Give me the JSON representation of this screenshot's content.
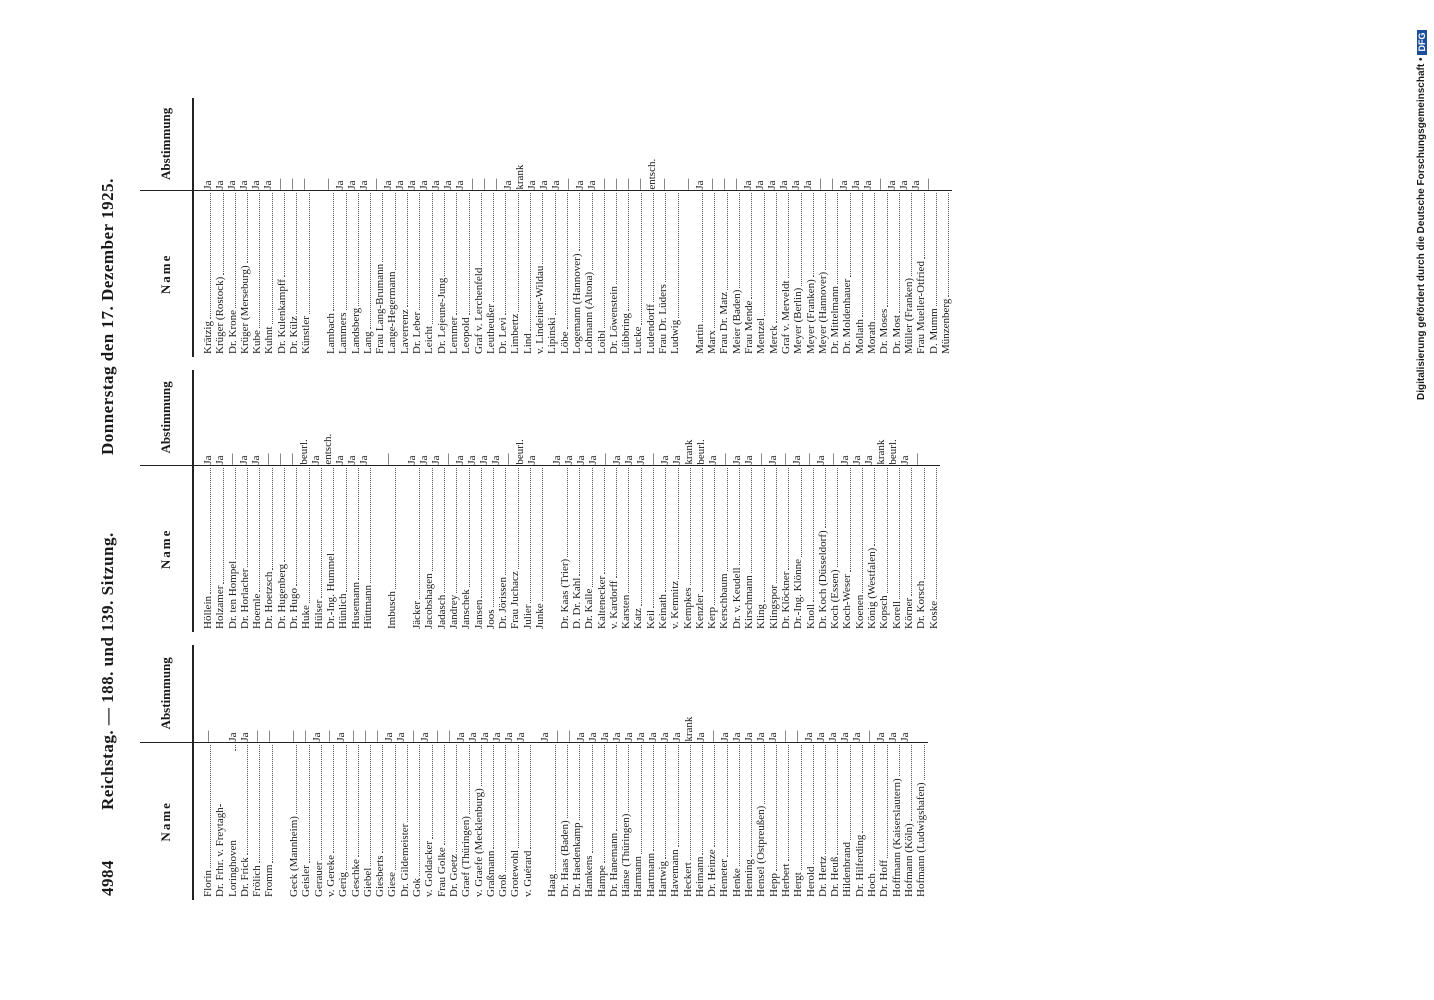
{
  "header": {
    "page_number": "4984",
    "title_left": "Reichstag. — 188. und 139. Sitzung.",
    "title_right": "Donnerstag den 17. Dezember 1925."
  },
  "table": {
    "column_headers": [
      "Name",
      "Abstimmung"
    ],
    "groups": [
      [
        [
          [
            "Florin",
            "—"
          ],
          [
            "Dr. Frhr. v. Freytagh-Loringhoven",
            "Ja"
          ],
          [
            "Dr. Frick",
            "Ja"
          ],
          [
            "Frölich",
            "—"
          ],
          [
            "Fromm",
            "—"
          ]
        ],
        [
          [
            "Geck (Mannheim)",
            "—"
          ],
          [
            "Geisler",
            "—"
          ],
          [
            "Gerauer",
            "Ja"
          ],
          [
            "v. Gereke",
            "—"
          ],
          [
            "Gerig",
            "Ja"
          ],
          [
            "Geschke",
            "—"
          ],
          [
            "Giebel",
            "—"
          ],
          [
            "Giesberts",
            "—"
          ],
          [
            "Giese",
            "Ja"
          ],
          [
            "Dr. Gildemeister",
            "Ja"
          ],
          [
            "Gok",
            "—"
          ],
          [
            "v. Goldacker",
            "Ja"
          ],
          [
            "Frau Golke",
            "—"
          ],
          [
            "Dr. Goetz",
            "—"
          ],
          [
            "Graef (Thüringen)",
            "Ja"
          ],
          [
            "v. Graefe (Mecklenburg)",
            "Ja"
          ],
          [
            "Graßmann",
            "Ja"
          ],
          [
            "Groß",
            "Ja"
          ],
          [
            "Grotewohl",
            "Ja"
          ],
          [
            "v. Guérard",
            "Ja"
          ]
        ],
        [
          [
            "Haag",
            "Ja"
          ],
          [
            "Dr. Haas (Baden)",
            "—"
          ],
          [
            "Dr. Haedenkamp",
            "—"
          ],
          [
            "Hamkens",
            "Ja"
          ],
          [
            "Hampe",
            "Ja"
          ],
          [
            "Dr. Hanemann",
            "Ja"
          ],
          [
            "Hänse (Thüringen)",
            "Ja"
          ],
          [
            "Harmann",
            "Ja"
          ],
          [
            "Hartmann",
            "Ja"
          ],
          [
            "Hartwig",
            "Ja"
          ],
          [
            "Havemann",
            "Ja"
          ],
          [
            "Heckert",
            "Ja"
          ],
          [
            "Heimann",
            "krank"
          ],
          [
            "Dr. Heinze",
            "Ja"
          ],
          [
            "Hemeter",
            "—"
          ],
          [
            "Henke",
            "Ja"
          ],
          [
            "Henning",
            "Ja"
          ],
          [
            "Hensel (Ostpreußen)",
            "Ja"
          ],
          [
            "Hepp",
            "Ja"
          ],
          [
            "Herbert",
            "Ja"
          ],
          [
            "Hergt",
            "—"
          ],
          [
            "Herold",
            "—"
          ],
          [
            "Dr. Hertz",
            "Ja"
          ],
          [
            "Dr. Heuß",
            "Ja"
          ],
          [
            "Hildenbrand",
            "Ja"
          ],
          [
            "Dr. Hilferding",
            "Ja"
          ],
          [
            "Hoch",
            "Ja"
          ],
          [
            "Dr. Hoff",
            "—"
          ],
          [
            "Hoffmann (Kaiserslautern)",
            "Ja"
          ],
          [
            "Hofmann (Köln)",
            "Ja"
          ],
          [
            "Hofmann (Ludwigshafen)",
            "Ja"
          ]
        ]
      ],
      [
        [
          [
            "Höllein",
            "Ja"
          ],
          [
            "Holzamer",
            "Ja"
          ],
          [
            "Dr. ten Hompel",
            "—"
          ],
          [
            "Dr. Horlacher",
            "Ja"
          ],
          [
            "Hoernle",
            "Ja"
          ],
          [
            "Dr. Hoetzsch",
            "—"
          ],
          [
            "Dr. Hugenberg",
            "—"
          ],
          [
            "Dr. Hugo",
            "—"
          ],
          [
            "Huke",
            "beurl."
          ],
          [
            "Hülser",
            "Ja"
          ],
          [
            "Dr.-Ing. Hummel",
            "entsch."
          ],
          [
            "Hünlich",
            "Ja"
          ],
          [
            "Husemann",
            "Ja"
          ],
          [
            "Hüttmann",
            "Ja"
          ]
        ],
        [
          [
            "Imbusch",
            "—"
          ]
        ],
        [
          [
            "Jäcker",
            "Ja"
          ],
          [
            "Jacobshagen",
            "Ja"
          ],
          [
            "Jadasch",
            "Ja"
          ],
          [
            "Jandrey",
            "—"
          ],
          [
            "Janschek",
            "Ja"
          ],
          [
            "Jansen",
            "Ja"
          ],
          [
            "Joos",
            "Ja"
          ],
          [
            "Dr. Jörissen",
            "Ja"
          ],
          [
            "Frau Juchacz",
            "—"
          ],
          [
            "Julier",
            "beurl."
          ],
          [
            "Junke",
            "Ja"
          ]
        ],
        [
          [
            "Dr. Kaas (Trier)",
            "Ja"
          ],
          [
            "D. Dr. Kahl",
            "Ja"
          ],
          [
            "Dr. Kalle",
            "Ja"
          ],
          [
            "Kaltenecker",
            "Ja"
          ],
          [
            "v. Kardorff",
            "—"
          ],
          [
            "Karsten",
            "Ja"
          ],
          [
            "Katz",
            "Ja"
          ],
          [
            "Keil",
            "Ja"
          ],
          [
            "Keinath",
            "—"
          ],
          [
            "v. Kemnitz",
            "Ja"
          ],
          [
            "Kempkes",
            "Ja"
          ],
          [
            "Kenzler",
            "krank"
          ],
          [
            "Kerp",
            "beurl."
          ],
          [
            "Kerschbaum",
            "Ja"
          ],
          [
            "Dr. v. Keudell",
            "—"
          ],
          [
            "Kirschmann",
            "Ja"
          ],
          [
            "Kling",
            "Ja"
          ],
          [
            "Klingspor",
            "—"
          ],
          [
            "Dr. Klöckner",
            "Ja"
          ],
          [
            "Dr.-Ing. Klönne",
            "—"
          ],
          [
            "Knoll",
            "Ja"
          ],
          [
            "Dr. Koch (Düsseldorf)",
            "—"
          ],
          [
            "Koch (Essen)",
            "Ja"
          ],
          [
            "Koch-Weser",
            "—"
          ],
          [
            "Koenen",
            "Ja"
          ],
          [
            "König (Westfalen)",
            "Ja"
          ],
          [
            "Kopsch",
            "Ja"
          ],
          [
            "Korell",
            "krank"
          ],
          [
            "Körner",
            "beurl."
          ],
          [
            "Dr. Korsch",
            "Ja"
          ],
          [
            "Koske",
            "—"
          ]
        ]
      ],
      [
        [
          [
            "Krätzig",
            "Ja"
          ],
          [
            "Krüger (Rostock)",
            "Ja"
          ],
          [
            "Dr. Krone",
            "Ja"
          ],
          [
            "Krüger (Merseburg)",
            "Ja"
          ],
          [
            "Kube",
            "Ja"
          ],
          [
            "Kuhnt",
            "Ja"
          ],
          [
            "Dr. Kulenkampff",
            "—"
          ],
          [
            "Dr. Külz",
            "—"
          ],
          [
            "Künstler",
            "—"
          ]
        ],
        [
          [
            "Lambach",
            "—"
          ],
          [
            "Lammers",
            "Ja"
          ],
          [
            "Landsberg",
            "Ja"
          ],
          [
            "Lang",
            "Ja"
          ],
          [
            "Frau Lang-Brumann",
            "—"
          ],
          [
            "Lange-Hegermann",
            "Ja"
          ],
          [
            "Laverrenz",
            "Ja"
          ],
          [
            "Dr. Leber",
            "Ja"
          ],
          [
            "Leicht",
            "Ja"
          ],
          [
            "Dr. Lejeune-Jung",
            "Ja"
          ],
          [
            "Lemmer",
            "Ja"
          ],
          [
            "Leopold",
            "Ja"
          ],
          [
            "Graf v. Lerchenfeld",
            "—"
          ],
          [
            "Leutheußer",
            "—"
          ],
          [
            "Dr. Levi",
            "—"
          ],
          [
            "Limbertz",
            "Ja"
          ],
          [
            "Lind",
            "krank"
          ],
          [
            "v. Lindeiner-Wildau",
            "Ja"
          ],
          [
            "Lipinski",
            "Ja"
          ],
          [
            "Löbe",
            "Ja"
          ],
          [
            "Logemann (Hannover)",
            "—"
          ],
          [
            "Lohmann (Altona)",
            "Ja"
          ],
          [
            "Loibl",
            "Ja"
          ],
          [
            "Dr. Löwenstein",
            "—"
          ],
          [
            "Lübbring",
            "—"
          ],
          [
            "Lucke",
            "—"
          ],
          [
            "Ludendorff",
            "—"
          ],
          [
            "Frau Dr. Lüders",
            "entsch."
          ],
          [
            "Ludwig",
            "—"
          ]
        ],
        [
          [
            "Martin",
            "—"
          ],
          [
            "Marx",
            "Ja"
          ],
          [
            "Frau Dr. Matz",
            "—"
          ],
          [
            "Meier (Baden)",
            "—"
          ],
          [
            "Frau Mende",
            "—"
          ],
          [
            "Mentzel",
            "Ja"
          ],
          [
            "Merck",
            "Ja"
          ],
          [
            "Graf v. Merveldt",
            "Ja"
          ],
          [
            "Meyer (Berlin)",
            "Ja"
          ],
          [
            "Meyer (Franken)",
            "Ja"
          ],
          [
            "Meyer (Hannover)",
            "Ja"
          ],
          [
            "Dr. Mittelmann",
            "—"
          ],
          [
            "Dr. Moldenhauer",
            "—"
          ],
          [
            "Mollath",
            "Ja"
          ],
          [
            "Morath",
            "Ja"
          ],
          [
            "Dr. Moses",
            "Ja"
          ],
          [
            "Dr. Most",
            "—"
          ],
          [
            "Müller (Franken)",
            "Ja"
          ],
          [
            "Frau Mueller-Otfried",
            "Ja"
          ],
          [
            "D. Mumm",
            "Ja"
          ],
          [
            "Münzenberg",
            "—"
          ]
        ]
      ]
    ]
  },
  "footer": {
    "credit": "Digitalisierung gefördert durch die Deutsche Forschungsgemeinschaft •",
    "logo": "DFG"
  }
}
